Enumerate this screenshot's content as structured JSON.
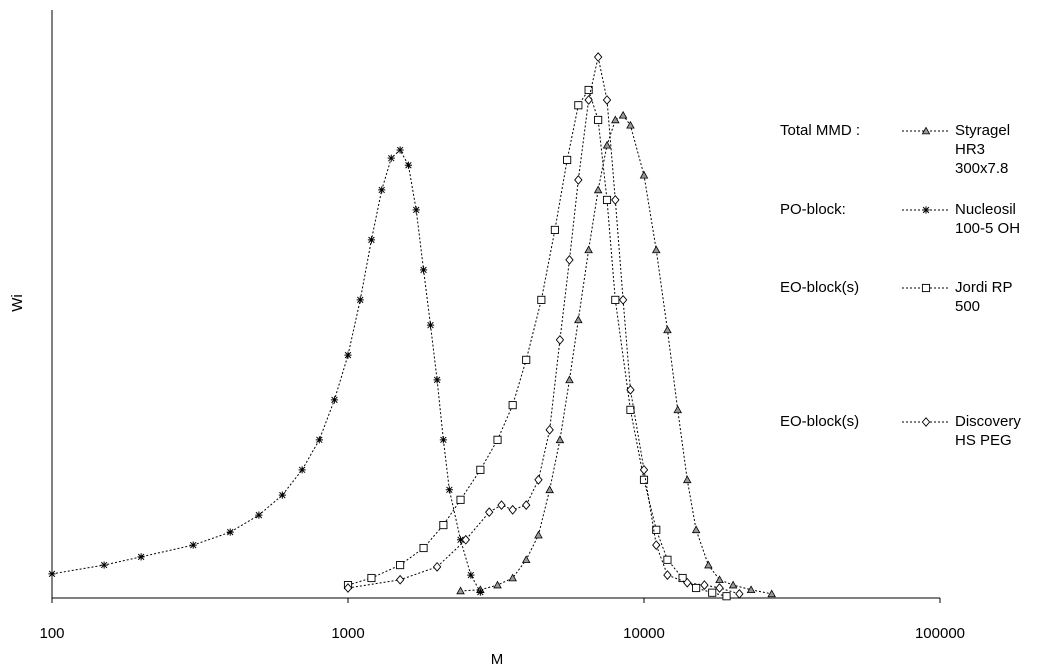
{
  "chart_data": {
    "type": "line",
    "xlabel": "M",
    "ylabel": "Wi",
    "xscale": "log",
    "xlim": [
      100,
      100000
    ],
    "xticks": [
      100,
      1000,
      10000,
      100000
    ],
    "ylim": [
      0,
      1
    ],
    "series": [
      {
        "group": "Total MMD :",
        "name": "Styragel HR3 300x7.8",
        "marker": "triangle",
        "color": "#000000",
        "x": [
          2400,
          2800,
          3200,
          3600,
          4000,
          4400,
          4800,
          5200,
          5600,
          6000,
          6500,
          7000,
          7500,
          8000,
          8500,
          9000,
          10000,
          11000,
          12000,
          13000,
          14000,
          15000,
          16500,
          18000,
          20000,
          23000,
          27000
        ],
        "values": [
          0.012,
          0.014,
          0.022,
          0.034,
          0.065,
          0.107,
          0.184,
          0.269,
          0.371,
          0.473,
          0.592,
          0.694,
          0.77,
          0.813,
          0.821,
          0.804,
          0.719,
          0.592,
          0.456,
          0.32,
          0.201,
          0.116,
          0.056,
          0.031,
          0.022,
          0.014,
          0.007
        ]
      },
      {
        "group": "PO-block:",
        "name": "Nucleosil 100-5 OH",
        "marker": "asterisk",
        "color": "#000000",
        "x": [
          100,
          150,
          200,
          300,
          400,
          500,
          600,
          700,
          800,
          900,
          1000,
          1100,
          1200,
          1300,
          1400,
          1500,
          1600,
          1700,
          1800,
          1900,
          2000,
          2100,
          2200,
          2400,
          2600,
          2800
        ],
        "values": [
          0.041,
          0.056,
          0.07,
          0.09,
          0.112,
          0.141,
          0.175,
          0.218,
          0.269,
          0.337,
          0.413,
          0.507,
          0.609,
          0.694,
          0.748,
          0.762,
          0.736,
          0.66,
          0.558,
          0.464,
          0.371,
          0.269,
          0.184,
          0.099,
          0.039,
          0.01
        ]
      },
      {
        "group": "EO-block(s)",
        "name": "Jordi RP 500",
        "marker": "square",
        "color": "#000000",
        "x": [
          1000,
          1200,
          1500,
          1800,
          2100,
          2400,
          2800,
          3200,
          3600,
          4000,
          4500,
          5000,
          5500,
          6000,
          6500,
          7000,
          7500,
          8000,
          9000,
          10000,
          11000,
          12000,
          13500,
          15000,
          17000,
          19000
        ],
        "values": [
          0.022,
          0.034,
          0.056,
          0.085,
          0.124,
          0.167,
          0.218,
          0.269,
          0.328,
          0.405,
          0.507,
          0.626,
          0.745,
          0.838,
          0.864,
          0.813,
          0.677,
          0.507,
          0.32,
          0.201,
          0.116,
          0.065,
          0.034,
          0.017,
          0.009,
          0.003
        ]
      },
      {
        "group": "EO-block(s)",
        "name": "Discovery HS PEG",
        "marker": "diamond",
        "color": "#000000",
        "x": [
          1000,
          1500,
          2000,
          2500,
          3000,
          3300,
          3600,
          4000,
          4400,
          4800,
          5200,
          5600,
          6000,
          6500,
          7000,
          7500,
          8000,
          8500,
          9000,
          10000,
          11000,
          12000,
          14000,
          16000,
          18000,
          21000
        ],
        "values": [
          0.017,
          0.031,
          0.053,
          0.099,
          0.146,
          0.158,
          0.15,
          0.158,
          0.201,
          0.286,
          0.439,
          0.575,
          0.711,
          0.847,
          0.92,
          0.847,
          0.677,
          0.507,
          0.354,
          0.218,
          0.09,
          0.039,
          0.026,
          0.022,
          0.017,
          0.007
        ]
      }
    ]
  }
}
